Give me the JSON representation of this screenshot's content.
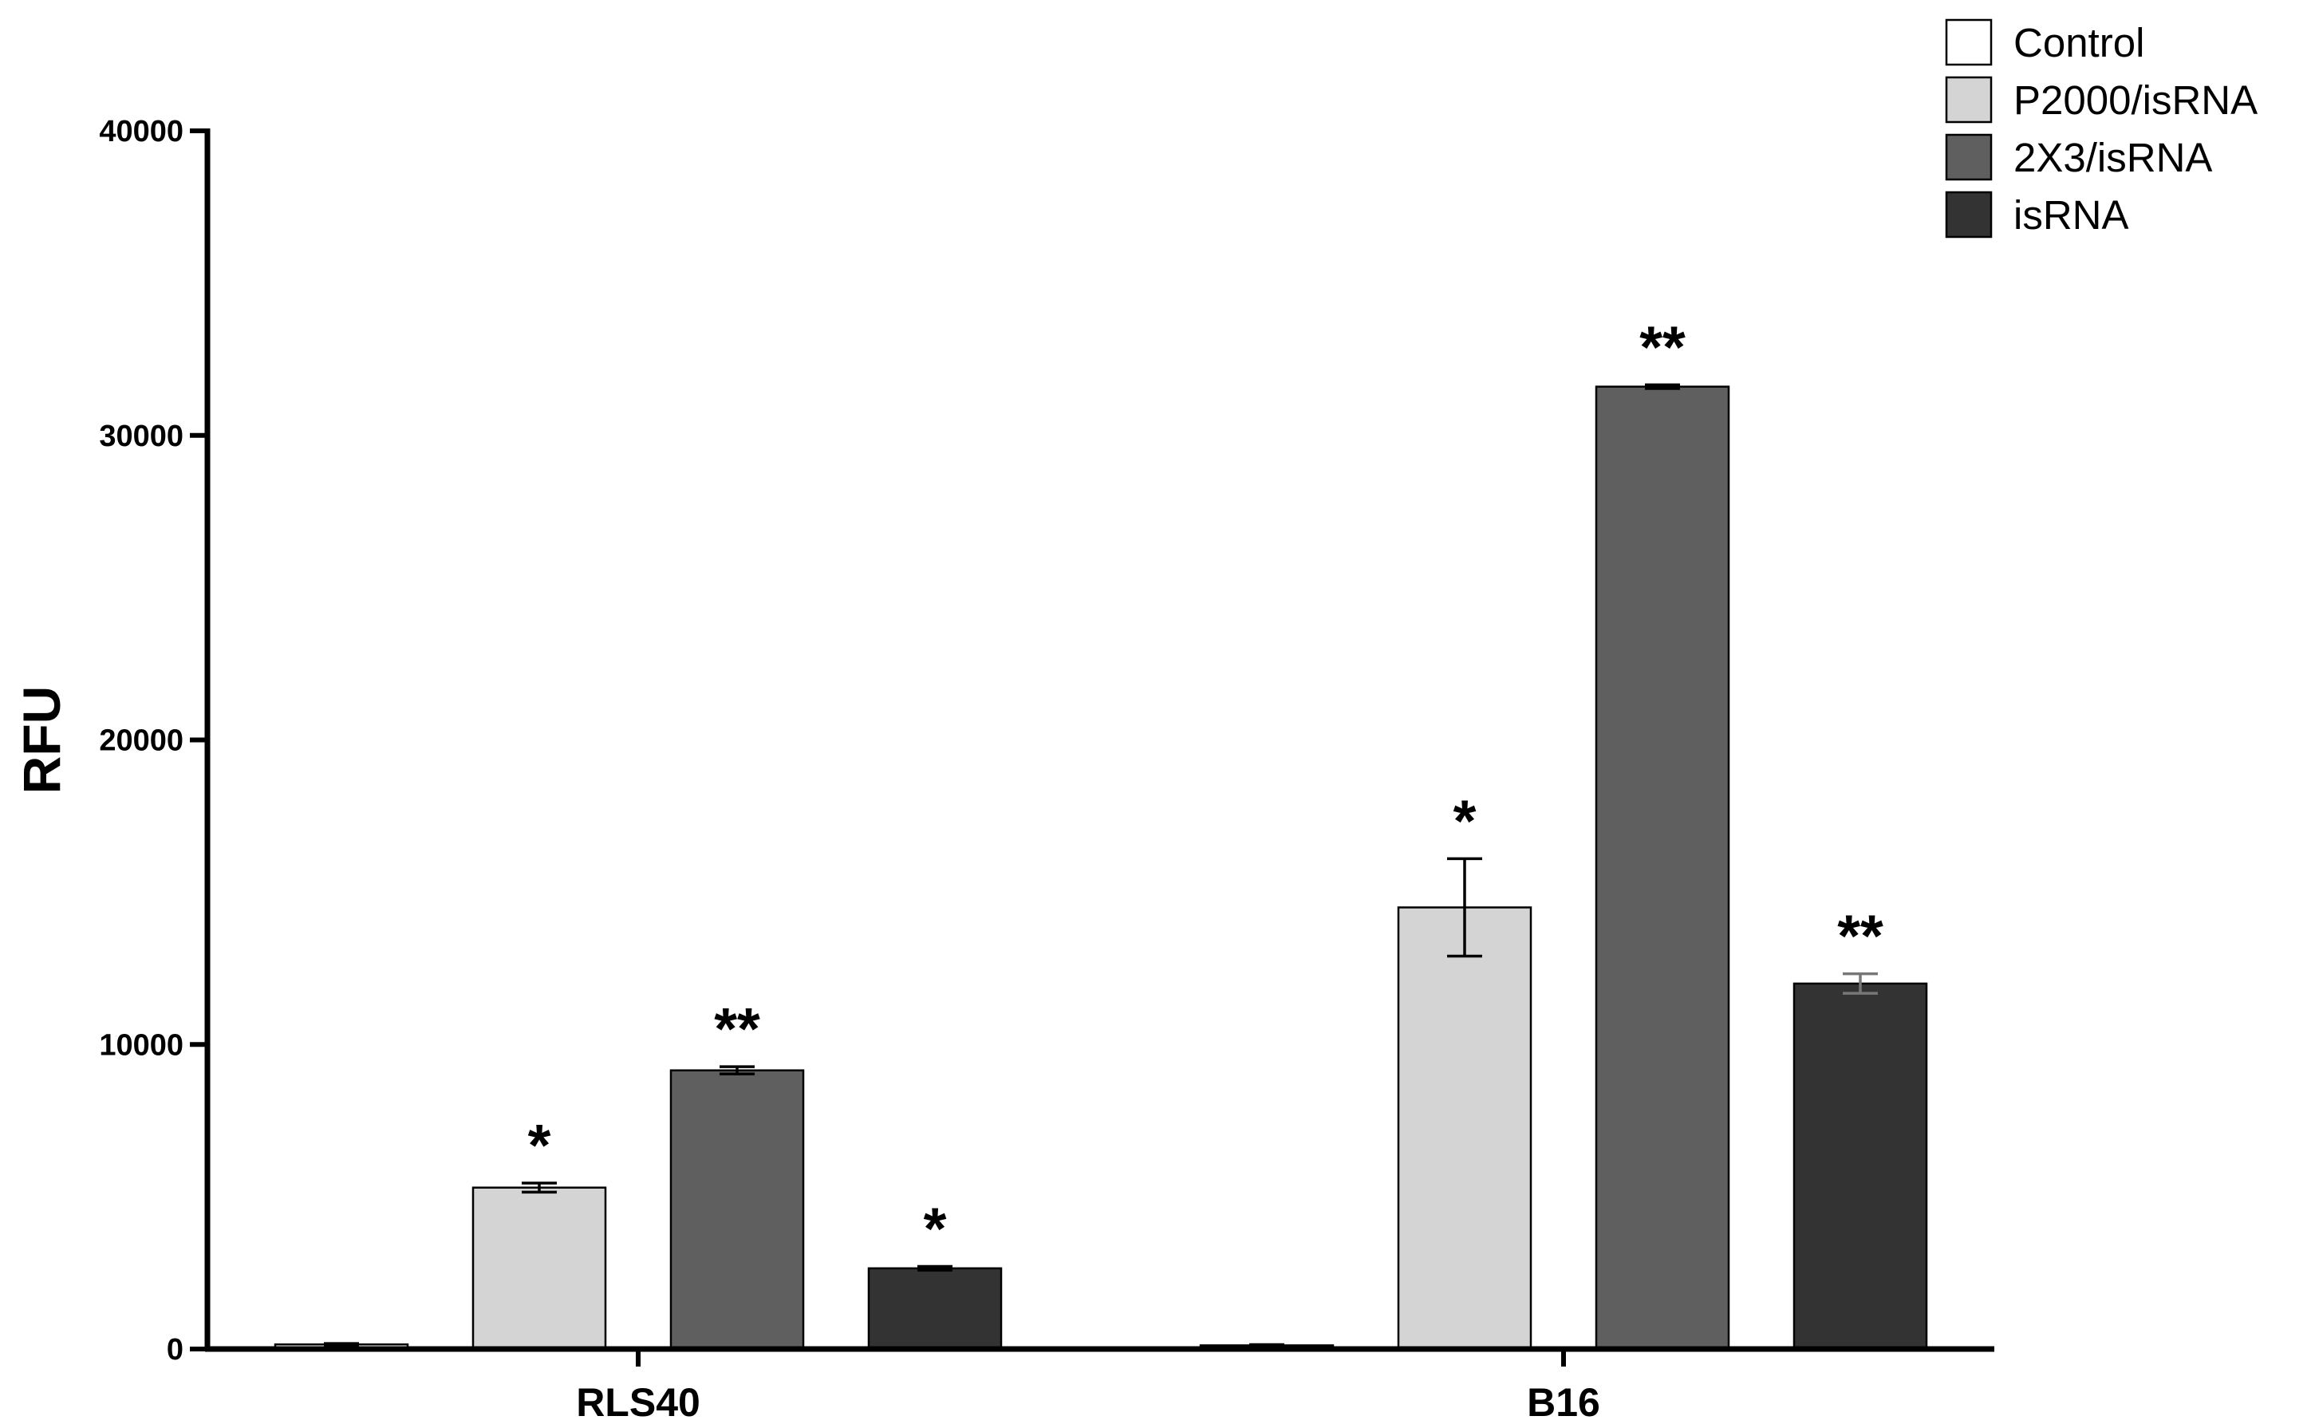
{
  "chart_data": {
    "type": "bar",
    "title": "",
    "xlabel": "",
    "ylabel": "RFU",
    "ylim": [
      0,
      40000
    ],
    "yticks": [
      0,
      10000,
      20000,
      30000,
      40000
    ],
    "ytick_labels": [
      "0",
      "10000",
      "20000",
      "30000",
      "40000"
    ],
    "categories": [
      "RLS40",
      "B16"
    ],
    "grid": false,
    "legend_position": "top-right",
    "series": [
      {
        "name": "Control",
        "color": "#ffffff",
        "values": [
          150,
          120
        ],
        "errors": [
          30,
          25
        ],
        "significance": [
          "",
          ""
        ]
      },
      {
        "name": "P2000/isRNA",
        "color": "#d4d4d4",
        "values": [
          5300,
          14500
        ],
        "errors": [
          150,
          1600
        ],
        "significance": [
          "*",
          "*"
        ]
      },
      {
        "name": "2X3/isRNA",
        "color": "#5f5f5f",
        "values": [
          9150,
          31600
        ],
        "errors": [
          120,
          60
        ],
        "significance": [
          "**",
          "**"
        ]
      },
      {
        "name": "isRNA",
        "color": "#333333",
        "values": [
          2650,
          12000
        ],
        "errors": [
          60,
          320
        ],
        "significance": [
          "*",
          "**"
        ]
      }
    ]
  }
}
